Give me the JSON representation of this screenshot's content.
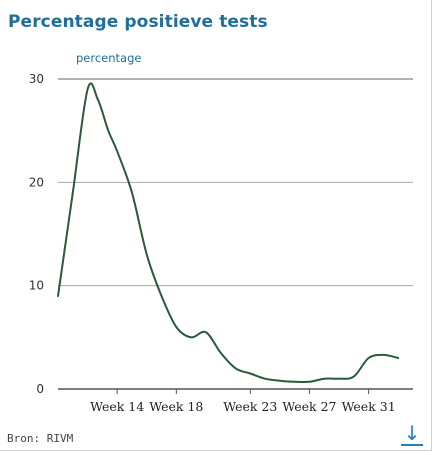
{
  "title": "Percentage positieve tests",
  "source": "Bron: RIVM",
  "download_icon": "download-arrow-icon",
  "colors": {
    "title": "#1f6f9a",
    "line": "#2a5a3a",
    "grid": "#aaaaaa",
    "icon": "#1f7fbf"
  },
  "chart_data": {
    "type": "line",
    "title": "Percentage positieve tests",
    "ylabel": "percentage",
    "xlabel": "",
    "ylim": [
      0,
      30
    ],
    "yticks": [
      0,
      10,
      20,
      30
    ],
    "xlim": [
      10,
      34
    ],
    "xticks": [
      {
        "week": 14,
        "label": "Week 14"
      },
      {
        "week": 18,
        "label": "Week 18"
      },
      {
        "week": 23,
        "label": "Week 23"
      },
      {
        "week": 27,
        "label": "Week 27"
      },
      {
        "week": 31,
        "label": "Week 31"
      }
    ],
    "grid": true,
    "series": [
      {
        "x": [
          10,
          11,
          12,
          12.7,
          13.4,
          14,
          15,
          16,
          17,
          18,
          19,
          20,
          21,
          22,
          23,
          24,
          25,
          26,
          27,
          28,
          29,
          30,
          31,
          32,
          33
        ],
        "y": [
          9,
          19,
          29,
          28,
          25,
          23,
          19,
          13,
          9,
          6,
          5,
          5.5,
          3.5,
          2,
          1.5,
          1,
          0.8,
          0.7,
          0.7,
          1,
          1,
          1.2,
          3,
          3.3,
          3
        ]
      }
    ]
  }
}
